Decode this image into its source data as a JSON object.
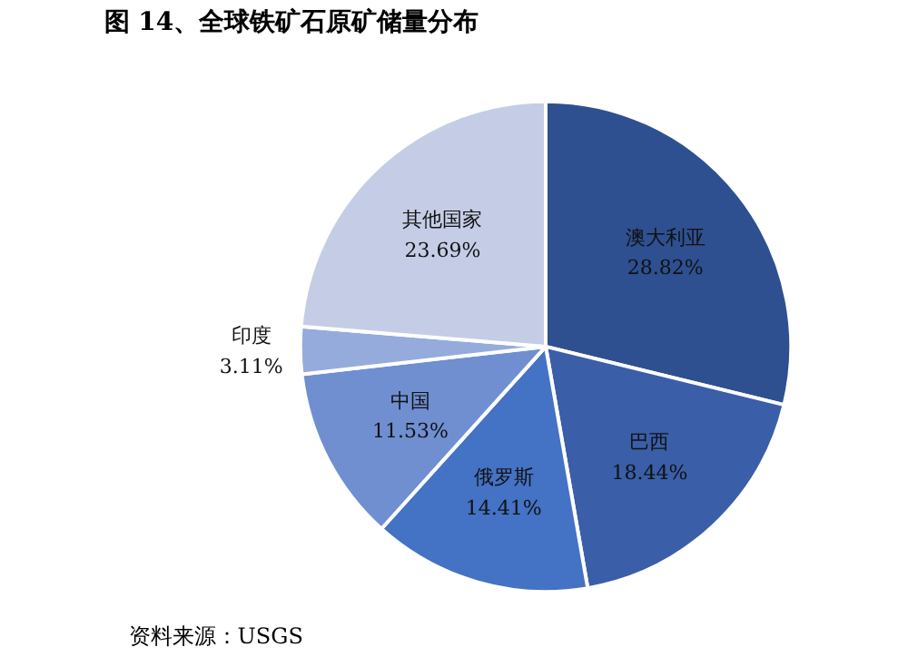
{
  "chart_data": {
    "type": "pie",
    "title": "图 14、全球铁矿石原矿储量分布",
    "categories": [
      "澳大利亚",
      "巴西",
      "俄罗斯",
      "中国",
      "印度",
      "其他国家"
    ],
    "values": [
      28.82,
      18.44,
      14.41,
      11.53,
      3.11,
      23.69
    ],
    "value_labels": [
      "28.82%",
      "18.44%",
      "14.41%",
      "11.53%",
      "3.11%",
      "23.69%"
    ],
    "colors": [
      "#2e5090",
      "#3a5ea8",
      "#4472c4",
      "#6f8fd0",
      "#95abdc",
      "#c5cde6"
    ],
    "annotations": [
      "资料来源：USGS"
    ]
  }
}
